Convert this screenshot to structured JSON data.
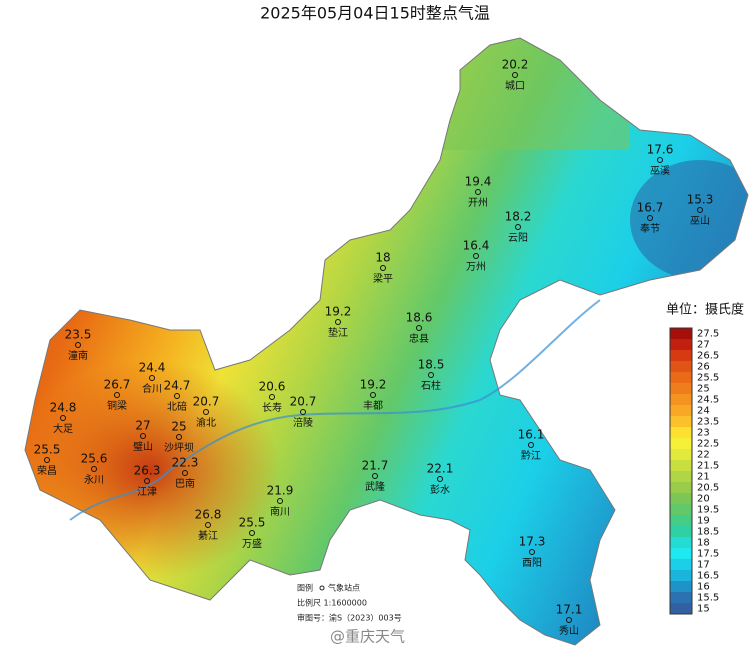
{
  "title": "2025年05月04日15时整点气温",
  "stations": [
    {
      "name": "城口",
      "value": "20.2"
    },
    {
      "name": "巫溪",
      "value": "17.6"
    },
    {
      "name": "巫山",
      "value": "15.3"
    },
    {
      "name": "奉节",
      "value": "16.7"
    },
    {
      "name": "开州",
      "value": "19.4"
    },
    {
      "name": "云阳",
      "value": "18.2"
    },
    {
      "name": "万州",
      "value": "16.4"
    },
    {
      "name": "梁平",
      "value": "18"
    },
    {
      "name": "垫江",
      "value": "19.2"
    },
    {
      "name": "忠县",
      "value": "18.6"
    },
    {
      "name": "石柱",
      "value": "18.5"
    },
    {
      "name": "丰都",
      "value": "19.2"
    },
    {
      "name": "长寿",
      "value": "20.6"
    },
    {
      "name": "涪陵",
      "value": "20.7"
    },
    {
      "name": "潼南",
      "value": "23.5"
    },
    {
      "name": "合川",
      "value": "24.4"
    },
    {
      "name": "北碚",
      "value": "24.7"
    },
    {
      "name": "铜梁",
      "value": "26.7"
    },
    {
      "name": "渝北",
      "value": "20.7"
    },
    {
      "name": "大足",
      "value": "24.8"
    },
    {
      "name": "璧山",
      "value": "27"
    },
    {
      "name": "沙坪坝",
      "value": "25"
    },
    {
      "name": "荣昌",
      "value": "25.5"
    },
    {
      "name": "永川",
      "value": "25.6"
    },
    {
      "name": "巴南",
      "value": "22.3"
    },
    {
      "name": "江津",
      "value": "26.3"
    },
    {
      "name": "南川",
      "value": "21.9"
    },
    {
      "name": "綦江",
      "value": "26.8"
    },
    {
      "name": "万盛",
      "value": "25.5"
    },
    {
      "name": "武隆",
      "value": "21.7"
    },
    {
      "name": "彭水",
      "value": "22.1"
    },
    {
      "name": "黔江",
      "value": "16.1"
    },
    {
      "name": "酉阳",
      "value": "17.3"
    },
    {
      "name": "秀山",
      "value": "17.1"
    }
  ],
  "legend": {
    "title": "单位：摄氏度",
    "ticks": [
      27.5,
      27,
      26.5,
      26,
      25.5,
      25,
      24.5,
      24,
      23.5,
      23,
      22.5,
      22,
      21.5,
      21,
      20.5,
      20,
      19.5,
      19,
      18.5,
      18,
      17.5,
      17,
      16.5,
      16,
      15.5,
      15
    ],
    "colors": [
      "#a50f0a",
      "#c0200d",
      "#d63a10",
      "#e05515",
      "#ea6a18",
      "#f07d1c",
      "#f59320",
      "#f8a825",
      "#fbc02a",
      "#fde030",
      "#f5f03a",
      "#e2ea3c",
      "#c9df40",
      "#b0d545",
      "#98cc4a",
      "#7cc656",
      "#62c86a",
      "#45cc85",
      "#30d0a5",
      "#25dcd5",
      "#1ee8f0",
      "#1ccfe8",
      "#1ab4dc",
      "#1f92c8",
      "#2a72b2",
      "#3360a0"
    ]
  },
  "footer": {
    "legend_label": "图例",
    "station_label": "气象站点",
    "scale": "比例尺 1:1600000",
    "approval": "审图号：渝S（2023）003号"
  },
  "watermark": "@重庆天气"
}
